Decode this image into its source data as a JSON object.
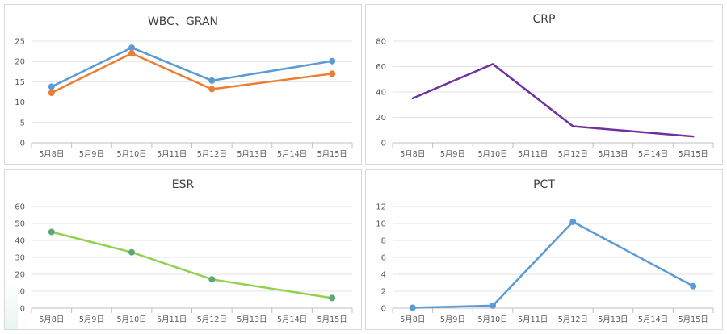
{
  "chart_data": [
    {
      "type": "line",
      "title": "WBC、GRAN",
      "categories": [
        "5月8日",
        "5月9日",
        "5月10日",
        "5月11日",
        "5月12日",
        "5月13日",
        "5月14日",
        "5月15日"
      ],
      "ylim": [
        0,
        25
      ],
      "yticks": [
        0,
        5,
        10,
        15,
        20,
        25
      ],
      "grid": true,
      "markers": true,
      "series": [
        {
          "color": "#5b9bd5",
          "values": [
            13.8,
            null,
            23.4,
            null,
            15.3,
            null,
            null,
            20.1
          ]
        },
        {
          "color": "#ed7d31",
          "values": [
            12.3,
            null,
            22.0,
            null,
            13.2,
            null,
            null,
            17.0
          ]
        }
      ]
    },
    {
      "type": "line",
      "title": "CRP",
      "categories": [
        "5月8日",
        "5月9日",
        "5月10日",
        "5月11日",
        "5月12日",
        "5月13日",
        "5月14日",
        "5月15日"
      ],
      "ylim": [
        0,
        80
      ],
      "yticks": [
        0,
        20,
        40,
        60,
        80
      ],
      "grid": true,
      "markers": false,
      "series": [
        {
          "color": "#7030a0",
          "values": [
            35,
            null,
            62,
            null,
            13,
            null,
            null,
            5
          ]
        }
      ]
    },
    {
      "type": "line",
      "title": "ESR",
      "categories": [
        "5月8日",
        "5月9日",
        "5月10日",
        "5月11日",
        "5月12日",
        "5月13日",
        "5月14日",
        "5月15日"
      ],
      "ylim": [
        0,
        60
      ],
      "yticks": [
        0,
        10,
        20,
        30,
        40,
        50,
        60
      ],
      "grid": true,
      "markers": true,
      "series": [
        {
          "color": "#92d050",
          "marker_color": "#5ea873",
          "values": [
            45,
            null,
            33,
            null,
            17,
            null,
            null,
            6
          ]
        }
      ]
    },
    {
      "type": "line",
      "title": "PCT",
      "categories": [
        "5月8日",
        "5月9日",
        "5月10日",
        "5月11日",
        "5月12日",
        "5月13日",
        "5月14日",
        "5月15日"
      ],
      "ylim": [
        0,
        12
      ],
      "yticks": [
        0,
        2,
        4,
        6,
        8,
        10,
        12
      ],
      "grid": true,
      "markers": true,
      "series": [
        {
          "color": "#5b9bd5",
          "values": [
            0.05,
            null,
            0.3,
            null,
            10.2,
            null,
            null,
            2.6
          ]
        }
      ]
    }
  ]
}
